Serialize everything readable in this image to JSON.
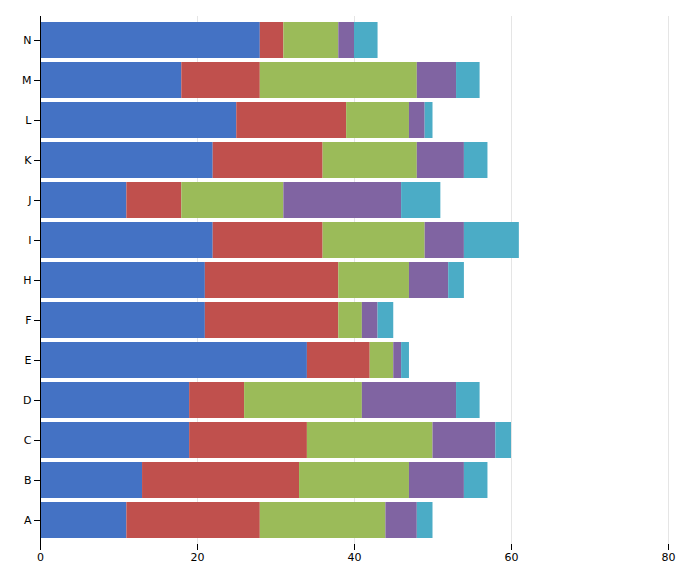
{
  "chart_data": {
    "type": "bar",
    "orientation": "horizontal",
    "stacked": true,
    "categories": [
      "N",
      "M",
      "L",
      "K",
      "J",
      "I",
      "H",
      "F",
      "E",
      "D",
      "C",
      "B",
      "A"
    ],
    "series": [
      {
        "color": "#4472C4",
        "values": [
          28,
          18,
          25,
          22,
          11,
          22,
          21,
          21,
          34,
          19,
          19,
          13,
          11
        ]
      },
      {
        "color": "#C0504D",
        "values": [
          3,
          10,
          14,
          14,
          7,
          14,
          17,
          17,
          8,
          7,
          15,
          20,
          17
        ]
      },
      {
        "color": "#9BBB59",
        "values": [
          7,
          20,
          8,
          12,
          13,
          13,
          9,
          3,
          3,
          15,
          16,
          14,
          16
        ]
      },
      {
        "color": "#8064A2",
        "values": [
          2,
          5,
          2,
          6,
          15,
          5,
          5,
          2,
          1,
          12,
          8,
          7,
          4
        ]
      },
      {
        "color": "#4BACC6",
        "values": [
          3,
          3,
          1,
          3,
          5,
          7,
          2,
          2,
          1,
          3,
          2,
          3,
          2
        ]
      }
    ],
    "xlim": [
      0,
      80
    ],
    "xticks": [
      0,
      20,
      40,
      60,
      80
    ],
    "grid": true
  }
}
